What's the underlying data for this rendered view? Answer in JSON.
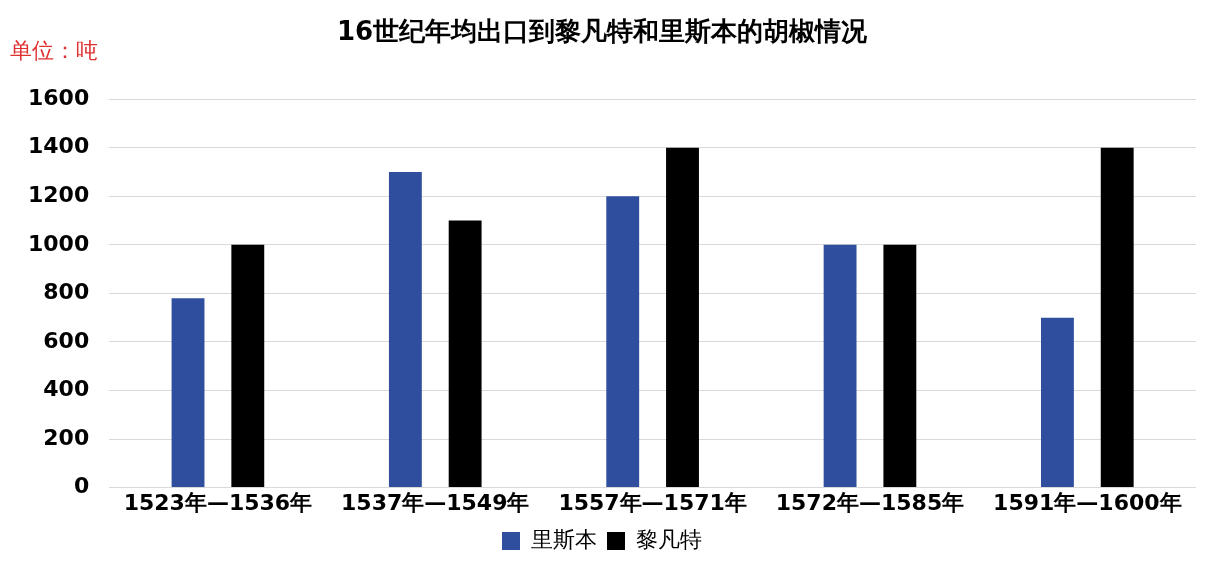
{
  "chart_data": {
    "type": "bar",
    "title": "16世纪年均出口到黎凡特和里斯本的胡椒情况",
    "ylabel": "单位：吨",
    "categories": [
      "1523年—1536年",
      "1537年—1549年",
      "1557年—1571年",
      "1572年—1585年",
      "1591年—1600年"
    ],
    "series": [
      {
        "name": "里斯本",
        "color": "#2f4f9e",
        "values": [
          780,
          1300,
          1200,
          1000,
          700
        ]
      },
      {
        "name": "黎凡特",
        "color": "#000000",
        "values": [
          1000,
          1100,
          1400,
          1000,
          1400
        ]
      }
    ],
    "ylim": [
      0,
      1600
    ],
    "yticks": [
      0,
      200,
      400,
      600,
      800,
      1000,
      1200,
      1400,
      1600
    ],
    "grid": "y",
    "legend": "bottom"
  }
}
